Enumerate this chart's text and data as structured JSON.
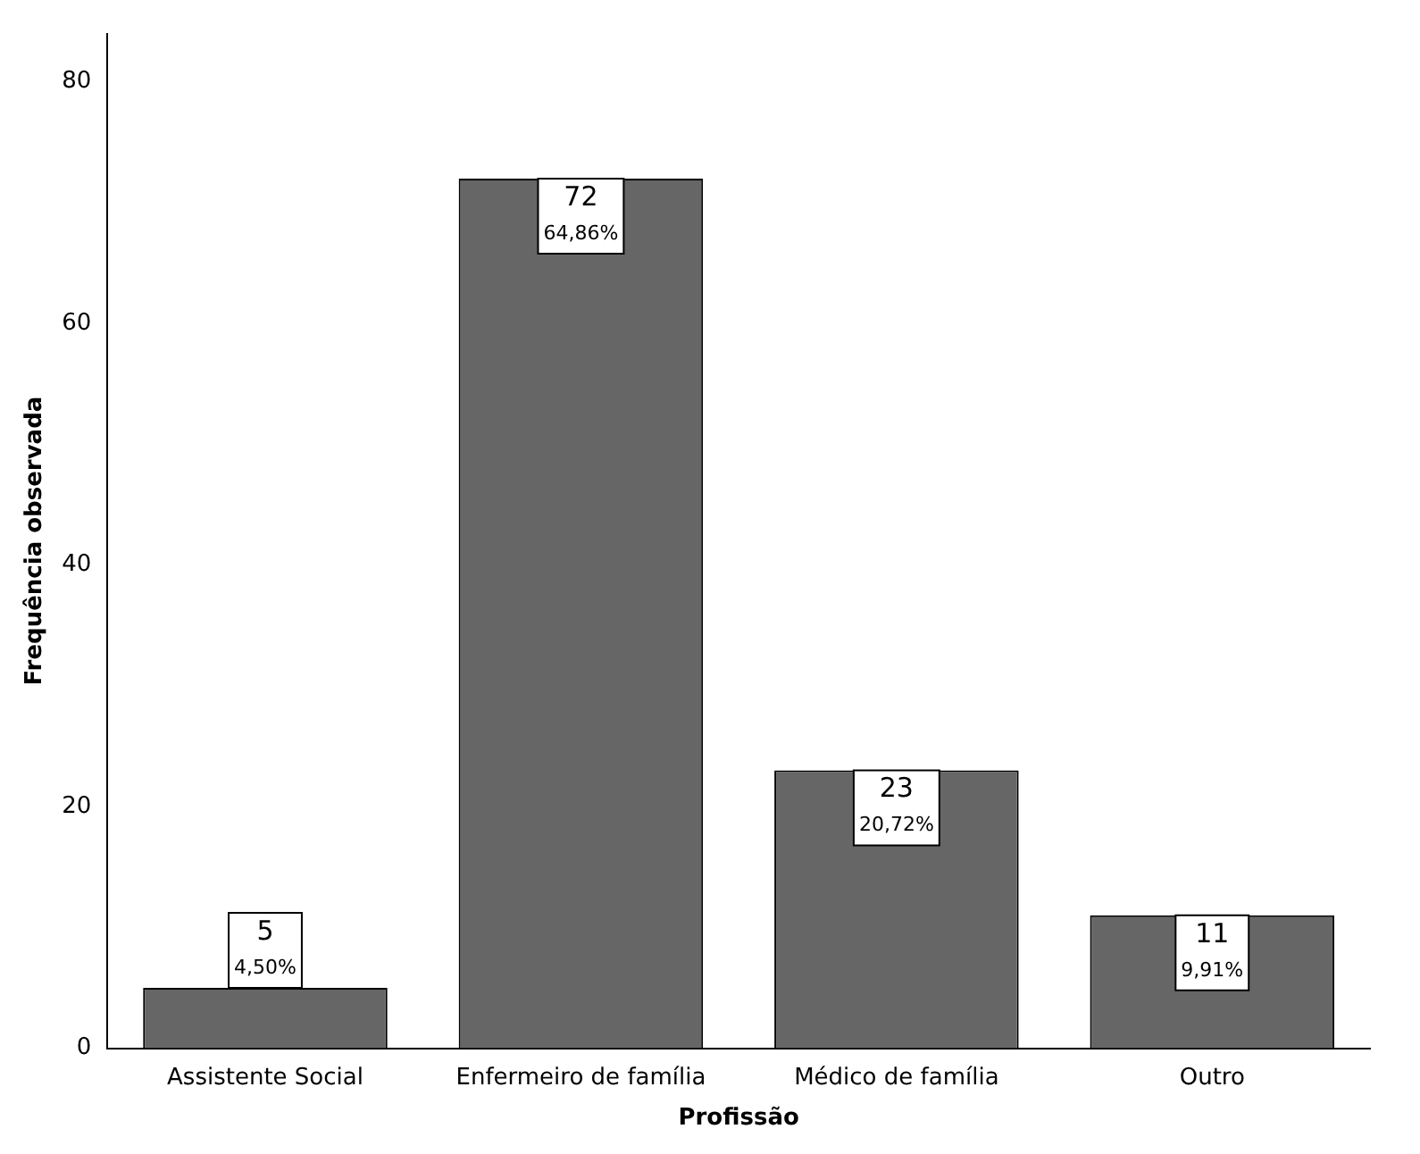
{
  "chart_data": {
    "type": "bar",
    "xlabel": "Profissão",
    "ylabel": "Frequência observada",
    "categories": [
      "Assistente Social",
      "Enfermeiro de família",
      "Médico de família",
      "Outro"
    ],
    "values": [
      5,
      72,
      23,
      11
    ],
    "value_labels": [
      "5\n4,50%",
      "72\n64,86%",
      "23\n20,72%",
      "11\n9,91%"
    ],
    "color": "#666666",
    "ylim": [
      0,
      84
    ],
    "yticks": [
      0,
      20,
      40,
      60,
      80
    ],
    "grid": false,
    "legend": false
  }
}
